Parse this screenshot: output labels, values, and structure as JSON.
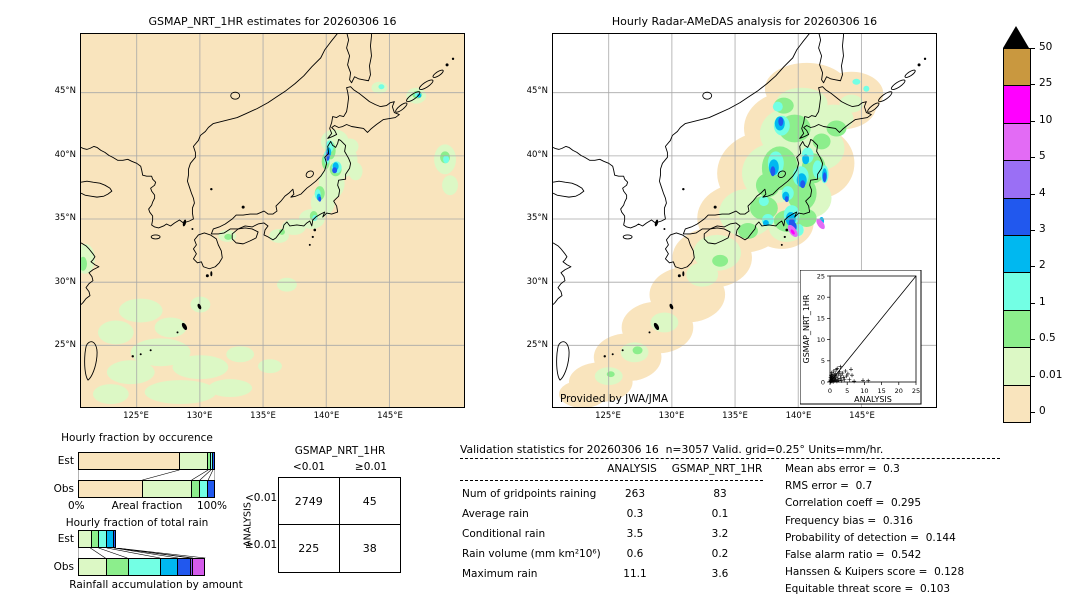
{
  "maps": {
    "left": {
      "title": "GSMAP_NRT_1HR estimates for 20260306 16",
      "background": "#F9E4BD"
    },
    "right": {
      "title": "Hourly Radar-AMeDAS analysis for 20260306 16",
      "credit": "Provided by JWA/JMA",
      "background": "#FFFFFF"
    },
    "lat_ticks": [
      "45°N",
      "40°N",
      "35°N",
      "30°N",
      "25°N"
    ],
    "lon_ticks": [
      "125°E",
      "130°E",
      "135°E",
      "140°E",
      "145°E"
    ]
  },
  "colorbar": {
    "units": "mm/hr",
    "tick_labels": [
      "50",
      "25",
      "10",
      "5",
      "4",
      "3",
      "2",
      "1",
      "0.5",
      "0.01",
      "0"
    ],
    "segment_colors_top_to_bottom": [
      "#C9983F",
      "#FF00FF",
      "#E36BF5",
      "#9A6FF5",
      "#2158EE",
      "#00B8F0",
      "#73FFE4",
      "#8CEE8C",
      "#DCF8C5",
      "#F9E4BD"
    ],
    "overflow_marker": "black-triangle"
  },
  "chart_data": [
    {
      "id": "hourly_fraction_by_occurrence",
      "type": "bar",
      "title": "Hourly fraction by occurence",
      "xlabel": "Areal fraction",
      "x_axis_labels": [
        "0%",
        "100%"
      ],
      "rows": [
        "Est",
        "Obs"
      ],
      "series": [
        {
          "name": "Est",
          "segments": [
            {
              "color": "#F9E4BD",
              "pct": 74
            },
            {
              "color": "#DCF8C5",
              "pct": 21
            },
            {
              "color": "#8CEE8C",
              "pct": 2
            },
            {
              "color": "#73FFE4",
              "pct": 1.5
            },
            {
              "color": "#2158EE",
              "pct": 1.5
            }
          ]
        },
        {
          "name": "Obs",
          "segments": [
            {
              "color": "#F9E4BD",
              "pct": 47
            },
            {
              "color": "#DCF8C5",
              "pct": 36
            },
            {
              "color": "#8CEE8C",
              "pct": 6
            },
            {
              "color": "#73FFE4",
              "pct": 6
            },
            {
              "color": "#2158EE",
              "pct": 5
            }
          ]
        }
      ]
    },
    {
      "id": "hourly_fraction_of_total_rain",
      "type": "bar",
      "title": "Hourly fraction of total rain",
      "xlabel": "Rainfall accumulation by amount",
      "rows": [
        "Est",
        "Obs"
      ],
      "series": [
        {
          "name": "Est",
          "segments": [
            {
              "color": "#DCF8C5",
              "pct": 9
            },
            {
              "color": "#8CEE8C",
              "pct": 6
            },
            {
              "color": "#73FFE4",
              "pct": 6
            },
            {
              "color": "#00B8F0",
              "pct": 5
            },
            {
              "color": "#2158EE",
              "pct": 2
            }
          ]
        },
        {
          "name": "Obs",
          "segments": [
            {
              "color": "#DCF8C5",
              "pct": 20
            },
            {
              "color": "#8CEE8C",
              "pct": 16
            },
            {
              "color": "#73FFE4",
              "pct": 24
            },
            {
              "color": "#00B8F0",
              "pct": 13
            },
            {
              "color": "#2158EE",
              "pct": 9
            },
            {
              "color": "#8A5CF0",
              "pct": 2
            },
            {
              "color": "#D45CEB",
              "pct": 9
            }
          ]
        }
      ]
    },
    {
      "id": "contingency_table",
      "type": "table",
      "col_group_label": "GSMAP_NRT_1HR",
      "row_group_label": "ANALYSIS",
      "col_labels": [
        "<0.01",
        "≥0.01"
      ],
      "row_labels": [
        "<0.01",
        "≥0.01"
      ],
      "values": [
        [
          "2749",
          "45"
        ],
        [
          "225",
          "38"
        ]
      ]
    },
    {
      "id": "validation_statistics",
      "type": "table",
      "title": "Validation statistics for 20260306 16  n=3057 Valid. grid=0.25° Units=mm/hr.",
      "columns": [
        "ANALYSIS",
        "GSMAP_NRT_1HR"
      ],
      "rows": [
        {
          "label": "Num of gridpoints raining",
          "analysis": "263",
          "gsmap": "83"
        },
        {
          "label": "Average rain",
          "analysis": "0.3",
          "gsmap": "0.1"
        },
        {
          "label": "Conditional rain",
          "analysis": "3.5",
          "gsmap": "3.2"
        },
        {
          "label": "Rain volume (mm km²10⁶)",
          "analysis": "0.6",
          "gsmap": "0.2"
        },
        {
          "label": "Maximum rain",
          "analysis": "11.1",
          "gsmap": "3.6"
        }
      ]
    },
    {
      "id": "summary_scores",
      "type": "table",
      "rows": [
        {
          "label": "Mean abs error",
          "value": "0.3"
        },
        {
          "label": "RMS error",
          "value": "0.7"
        },
        {
          "label": "Correlation coeff",
          "value": "0.295"
        },
        {
          "label": "Frequency bias",
          "value": "0.316"
        },
        {
          "label": "Probability of detection",
          "value": "0.144"
        },
        {
          "label": "False alarm ratio",
          "value": "0.542"
        },
        {
          "label": "Hanssen & Kuipers score",
          "value": "0.128"
        },
        {
          "label": "Equitable threat score",
          "value": "0.103"
        }
      ]
    },
    {
      "id": "scatter_inset",
      "type": "scatter",
      "xlabel": "ANALYSIS",
      "ylabel": "GSMAP_NRT_1HR",
      "xlim": [
        0,
        25
      ],
      "ylim": [
        0,
        25
      ],
      "ticks": [
        0,
        5,
        10,
        15,
        20,
        25
      ],
      "identity_line": true,
      "marker": "+",
      "points": [
        [
          0.1,
          0.2
        ],
        [
          0.15,
          0.5
        ],
        [
          0.2,
          0.1
        ],
        [
          0.2,
          1.1
        ],
        [
          0.3,
          0.4
        ],
        [
          0.3,
          1.6
        ],
        [
          0.4,
          0.2
        ],
        [
          0.4,
          0.9
        ],
        [
          0.5,
          0.3
        ],
        [
          0.5,
          1.3
        ],
        [
          0.5,
          2.2
        ],
        [
          0.6,
          0.6
        ],
        [
          0.7,
          1.0
        ],
        [
          0.7,
          0.2
        ],
        [
          0.8,
          1.8
        ],
        [
          0.9,
          0.5
        ],
        [
          1.0,
          0.1
        ],
        [
          1.0,
          1.2
        ],
        [
          1.1,
          2.6
        ],
        [
          1.2,
          0.8
        ],
        [
          1.3,
          1.5
        ],
        [
          1.4,
          0.3
        ],
        [
          1.5,
          2.0
        ],
        [
          1.6,
          1.0
        ],
        [
          1.7,
          0.5
        ],
        [
          1.8,
          2.9
        ],
        [
          2.0,
          0.2
        ],
        [
          2.0,
          1.4
        ],
        [
          2.1,
          3.2
        ],
        [
          2.3,
          0.7
        ],
        [
          2.5,
          1.9
        ],
        [
          2.6,
          0.4
        ],
        [
          2.8,
          2.4
        ],
        [
          3.0,
          0.9
        ],
        [
          3.0,
          3.6
        ],
        [
          3.2,
          1.6
        ],
        [
          3.4,
          0.3
        ],
        [
          3.6,
          2.1
        ],
        [
          3.9,
          1.1
        ],
        [
          4.2,
          0.6
        ],
        [
          4.5,
          2.6
        ],
        [
          4.8,
          1.4
        ],
        [
          5.2,
          1.9
        ],
        [
          5.6,
          0.6
        ],
        [
          6.1,
          3.0
        ],
        [
          6.4,
          1.6
        ],
        [
          7.0,
          0.2
        ],
        [
          9.6,
          0.4
        ],
        [
          11.1,
          0.3
        ]
      ]
    }
  ]
}
